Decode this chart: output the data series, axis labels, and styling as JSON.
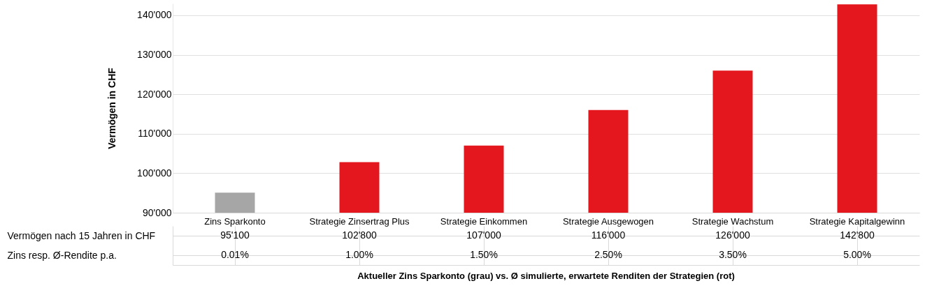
{
  "chart_data": {
    "type": "bar",
    "ylabel": "Vermögen in CHF",
    "categories": [
      "Zins Sparkonto",
      "Strategie Zinsertrag Plus",
      "Strategie Einkommen",
      "Strategie Ausgewogen",
      "Strategie Wachstum",
      "Strategie Kapitalgewinn"
    ],
    "series": [
      {
        "name": "Vermögen nach 15 Jahren in CHF",
        "colors": [
          "#a6a6a6",
          "#e3171d",
          "#e3171d",
          "#e3171d",
          "#e3171d",
          "#e3171d"
        ],
        "values": [
          95100,
          102800,
          107000,
          116000,
          126000,
          142800
        ],
        "value_labels": [
          "95'100",
          "102'800",
          "107'000",
          "116'000",
          "126'000",
          "142'800"
        ]
      }
    ],
    "annotations": [
      "Zins resp. Ø-Rendite p.a.",
      "Aktueller Zins Sparkonto (grau) vs. Ø simulierte, erwartete Renditen der Strategien (rot)",
      {
        "text": "0.01%",
        "x": "Zins Sparkonto"
      },
      {
        "text": "1.00%",
        "x": "Strategie Zinsertrag Plus"
      },
      {
        "text": "1.50%",
        "x": "Strategie Einkommen"
      },
      {
        "text": "2.50%",
        "x": "Strategie Ausgewogen"
      },
      {
        "text": "3.50%",
        "x": "Strategie Wachstum"
      },
      {
        "text": "5.00%",
        "x": "Strategie Kapitalgewinn"
      }
    ],
    "ylim": [
      90000,
      143000
    ],
    "yticks": [
      {
        "value": 90000,
        "label": "90'000"
      },
      {
        "value": 100000,
        "label": "100'000"
      },
      {
        "value": 110000,
        "label": "110'000"
      },
      {
        "value": 120000,
        "label": "120'000"
      },
      {
        "value": 130000,
        "label": "130'000"
      },
      {
        "value": 140000,
        "label": "140'000"
      }
    ],
    "grid": "y",
    "legend": false
  }
}
